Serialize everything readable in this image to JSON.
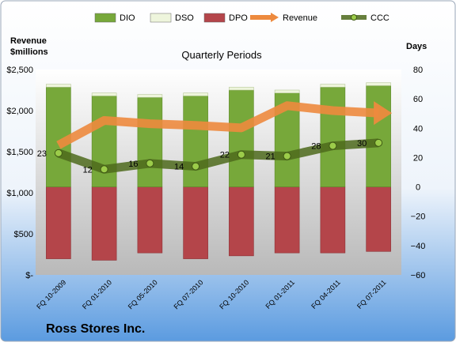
{
  "chart_data": {
    "type": "bar",
    "title": "Quarterly Periods",
    "company": "Ross Stores Inc.",
    "left_axis_label": [
      "Revenue",
      "$millions"
    ],
    "right_axis_label": "Days",
    "left_ticks": [
      "$-",
      "$500",
      "$1,000",
      "$1,500",
      "$2,000",
      "$2,500"
    ],
    "left_ylim": [
      0,
      2500
    ],
    "right_ylim": [
      -60,
      80
    ],
    "right_ticks": [
      -60,
      -40,
      -20,
      0,
      20,
      40,
      60,
      80
    ],
    "categories": [
      "FQ 10-2009",
      "FQ 01-2010",
      "FQ 05-2010",
      "FQ 07-2010",
      "FQ 10-2010",
      "FQ 01-2011",
      "FQ 04-2011",
      "FQ 07-2011"
    ],
    "series": [
      {
        "name": "DIO",
        "type": "bar",
        "axis": "right",
        "color": "#77a83a",
        "values": [
          68,
          62,
          61,
          62,
          66,
          64,
          68,
          69
        ]
      },
      {
        "name": "DSO",
        "type": "bar",
        "axis": "right",
        "color": "#eef5dc",
        "values": [
          2,
          2,
          2,
          2,
          2,
          2,
          2,
          2
        ]
      },
      {
        "name": "DPO",
        "type": "bar",
        "axis": "right",
        "color": "#b4454a",
        "values": [
          -49,
          -50,
          -45,
          -49,
          -47,
          -45,
          -45,
          -44
        ]
      },
      {
        "name": "Revenue",
        "type": "line",
        "axis": "left",
        "color": "#ed8a3e",
        "values": [
          1580,
          1880,
          1840,
          1820,
          1790,
          2060,
          2000,
          1970
        ]
      },
      {
        "name": "CCC",
        "type": "line",
        "axis": "right",
        "color": "#4d6a1c",
        "values": [
          23,
          12,
          16,
          14,
          22,
          21,
          28,
          30
        ],
        "labels": [
          "23",
          "12",
          "16",
          "14",
          "22",
          "21",
          "28",
          "30"
        ]
      }
    ],
    "legend": {
      "position": "top",
      "items": [
        "DIO",
        "DSO",
        "DPO",
        "Revenue",
        "CCC"
      ]
    },
    "grid": false
  }
}
